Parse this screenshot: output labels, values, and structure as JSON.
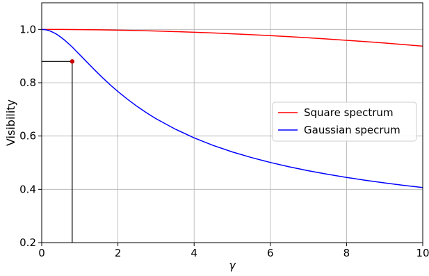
{
  "chart_data": {
    "type": "line",
    "xlabel": "γ",
    "ylabel": "Visibility",
    "xlim": [
      0,
      10
    ],
    "ylim": [
      0.2,
      1.1
    ],
    "xticks": [
      "0",
      "2",
      "4",
      "6",
      "8",
      "10"
    ],
    "xtick_values": [
      0,
      2,
      4,
      6,
      8,
      10
    ],
    "yticks": [
      "0.2",
      "0.4",
      "0.6",
      "0.8",
      "1.0"
    ],
    "ytick_values": [
      0.2,
      0.4,
      0.6,
      0.8,
      1.0
    ],
    "grid": true,
    "legend_position": "center-right",
    "series": [
      {
        "name": "Square spectrum",
        "color": "#ff0000",
        "x": [
          0,
          0.5,
          1,
          1.5,
          2,
          2.5,
          3,
          3.5,
          4,
          4.5,
          5,
          5.5,
          6,
          6.5,
          7,
          7.5,
          8,
          8.5,
          9,
          9.5,
          10
        ],
        "y": [
          1.0,
          1.0,
          0.9993,
          0.9985,
          0.9974,
          0.9959,
          0.9941,
          0.9919,
          0.9895,
          0.9868,
          0.9837,
          0.9804,
          0.9768,
          0.9728,
          0.9686,
          0.9641,
          0.9593,
          0.9542,
          0.9489,
          0.9433,
          0.9374
        ]
      },
      {
        "name": "Gaussian specrum",
        "color": "#0000ff",
        "x": [
          0,
          0.1,
          0.2,
          0.3,
          0.4,
          0.5,
          0.6,
          0.7,
          0.8,
          0.9,
          1.0,
          1.2,
          1.4,
          1.6,
          1.8,
          2.0,
          2.25,
          2.5,
          2.75,
          3.0,
          3.5,
          4.0,
          4.5,
          5.0,
          5.5,
          6.0,
          6.5,
          7.0,
          7.5,
          8.0,
          8.5,
          9.0,
          9.5,
          10.0
        ],
        "y": [
          1.0,
          0.9988,
          0.9951,
          0.9891,
          0.9811,
          0.9712,
          0.9598,
          0.9471,
          0.934,
          0.9194,
          0.9049,
          0.8755,
          0.8465,
          0.8185,
          0.7918,
          0.767,
          0.7382,
          0.7115,
          0.6872,
          0.665,
          0.6262,
          0.5931,
          0.5648,
          0.5405,
          0.5194,
          0.5008,
          0.4844,
          0.4698,
          0.4566,
          0.4447,
          0.4339,
          0.424,
          0.415,
          0.4066
        ]
      }
    ],
    "annotations": [
      {
        "type": "point",
        "x": 0.8,
        "y": 0.88,
        "color": "#cc0000"
      },
      {
        "type": "hline-segment",
        "x_from": 0,
        "x_to": 0.8,
        "y": 0.88,
        "color": "#000000"
      },
      {
        "type": "vline-segment",
        "x": 0.8,
        "y_from": 0.2,
        "y_to": 0.88,
        "color": "#000000"
      }
    ]
  }
}
